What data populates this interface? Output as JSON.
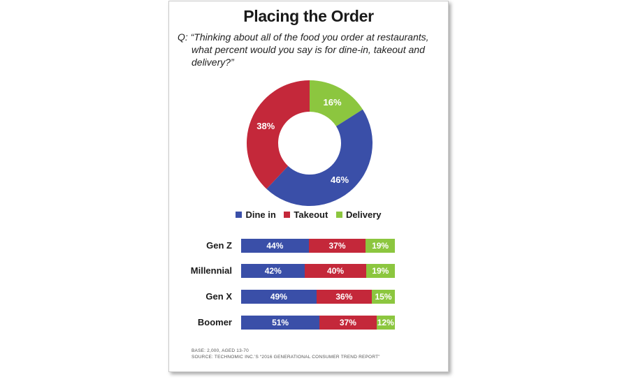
{
  "title": "Placing the Order",
  "question": {
    "line1": "Q: “Thinking about all of the food you order at restaurants,",
    "line2": "what percent would you say is for dine-in, takeout and delivery?”"
  },
  "legend": [
    {
      "label": "Dine in",
      "color": "#3a4fa8"
    },
    {
      "label": "Takeout",
      "color": "#c4283a"
    },
    {
      "label": "Delivery",
      "color": "#8cc63f"
    }
  ],
  "chart_data": [
    {
      "type": "pie",
      "categories": [
        "Dine in",
        "Takeout",
        "Delivery"
      ],
      "values": [
        46,
        38,
        16
      ],
      "labels": [
        "46%",
        "38%",
        "16%"
      ],
      "colors": [
        "#3a4fa8",
        "#c4283a",
        "#8cc63f"
      ]
    },
    {
      "type": "bar",
      "orientation": "horizontal",
      "stacked": true,
      "categories": [
        "Gen Z",
        "Millennial",
        "Gen X",
        "Boomer"
      ],
      "series": [
        {
          "name": "Dine in",
          "values": [
            44,
            42,
            49,
            51
          ],
          "labels": [
            "44%",
            "42%",
            "49%",
            "51%"
          ],
          "color": "#3a4fa8"
        },
        {
          "name": "Takeout",
          "values": [
            37,
            40,
            36,
            37
          ],
          "labels": [
            "37%",
            "40%",
            "36%",
            "37%"
          ],
          "color": "#c4283a"
        },
        {
          "name": "Delivery",
          "values": [
            19,
            19,
            15,
            12
          ],
          "labels": [
            "19%",
            "19%",
            "15%",
            "12%"
          ],
          "color": "#8cc63f"
        }
      ]
    }
  ],
  "footnote": {
    "line1": "BASE: 2,000, AGED 13-70",
    "line2": "SOURCE: TECHNOMIC INC.’S “2016 GENERATIONAL CONSUMER TREND REPORT”"
  }
}
